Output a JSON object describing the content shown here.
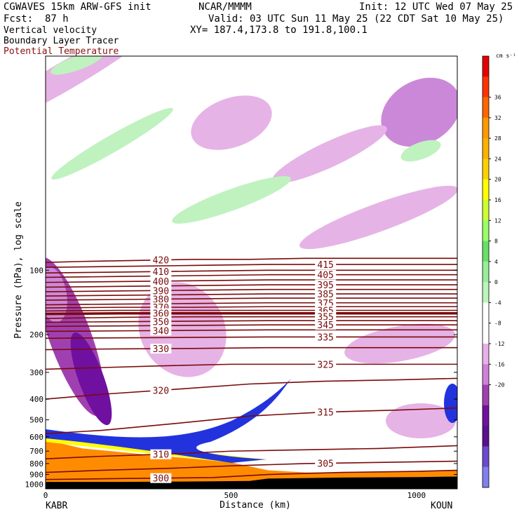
{
  "header": {
    "model": "CGWAVES 15km ARW-GFS init",
    "org": "NCAR/MMMM",
    "init": "Init: 12 UTC Wed 07 May 25",
    "fcst": "Fcst:  87 h",
    "valid": "Valid: 03 UTC Sun 11 May 25 (22 CDT Sat 10 May 25)",
    "xy": "XY= 187.4,173.8 to 191.8,100.1",
    "field1": "Vertical velocity",
    "field2": "Boundary Layer Tracer",
    "field3": "Potential Temperature"
  },
  "colors": {
    "theta": "#7a0a0a",
    "field3": "#8a1010",
    "tracer_fill": "#ff8c00",
    "jet_blue": "#2233dd"
  },
  "chart_data": {
    "type": "heatmap",
    "title": "",
    "xlabel": "Distance (km)",
    "ylabel": "Pressure (hPa), log scale",
    "xlim": [
      0,
      1110
    ],
    "ylim": [
      1050,
      10
    ],
    "x_ticks": [
      "0",
      "500",
      "1000"
    ],
    "y_ticks": [
      "100",
      "200",
      "300",
      "400",
      "500",
      "600",
      "700",
      "800",
      "900",
      "1000"
    ],
    "endpoints": {
      "left": "KABR",
      "right": "KOUN"
    },
    "colorbar": {
      "units": "cm s⁻¹",
      "labels": [
        "36",
        "32",
        "28",
        "24",
        "20",
        "16",
        "12",
        "8",
        "4",
        "0",
        "-4",
        "-8",
        "-12",
        "-16",
        "-20"
      ],
      "colors": [
        "#e60000",
        "#ff3300",
        "#ff6600",
        "#ff9900",
        "#ffb000",
        "#ffd000",
        "#ffff00",
        "#ccff33",
        "#99ff66",
        "#66e066",
        "#99ee99",
        "#bbf5bb",
        "#ffffff",
        "#ffffff",
        "#e8b0e8",
        "#d080d8",
        "#a040b0",
        "#7010a0",
        "#5a1090",
        "#6a4ad0",
        "#8080ee"
      ]
    },
    "theta_contours": [
      {
        "label": "420",
        "x": [
          0,
          100,
          250,
          400,
          550,
          700,
          850,
          1000,
          1110
        ],
        "p": [
          92,
          91,
          90,
          89,
          89,
          88,
          88,
          88,
          88
        ]
      },
      {
        "label": "415",
        "x": [
          0,
          200,
          400,
          600,
          800,
          1000,
          1110
        ],
        "p": [
          97,
          96,
          95,
          94,
          94,
          94,
          94
        ]
      },
      {
        "label": "410",
        "x": [
          0,
          200,
          400,
          600,
          800,
          1000,
          1110
        ],
        "p": [
          103,
          102,
          101,
          100,
          100,
          100,
          100
        ]
      },
      {
        "label": "405",
        "x": [
          0,
          200,
          400,
          600,
          800,
          1000,
          1110
        ],
        "p": [
          108,
          107,
          106,
          105,
          105,
          105,
          105
        ]
      },
      {
        "label": "400",
        "x": [
          0,
          200,
          400,
          600,
          800,
          1000,
          1110
        ],
        "p": [
          114,
          113,
          112,
          111,
          111,
          111,
          111
        ]
      },
      {
        "label": "395",
        "x": [
          0,
          200,
          400,
          600,
          800,
          1000,
          1110
        ],
        "p": [
          120,
          119,
          118,
          117,
          117,
          117,
          117
        ]
      },
      {
        "label": "390",
        "x": [
          0,
          200,
          400,
          600,
          800,
          1000,
          1110
        ],
        "p": [
          126,
          125,
          124,
          123,
          123,
          123,
          123
        ]
      },
      {
        "label": "385",
        "x": [
          0,
          200,
          400,
          600,
          800,
          1000,
          1110
        ],
        "p": [
          132,
          131,
          130,
          129,
          129,
          129,
          129
        ]
      },
      {
        "label": "380",
        "x": [
          0,
          200,
          400,
          600,
          800,
          1000,
          1110
        ],
        "p": [
          138,
          137,
          136,
          135,
          135,
          135,
          135
        ]
      },
      {
        "label": "375",
        "x": [
          0,
          200,
          400,
          600,
          800,
          1000,
          1110
        ],
        "p": [
          145,
          144,
          143,
          142,
          142,
          142,
          142
        ]
      },
      {
        "label": "370",
        "x": [
          0,
          200,
          400,
          600,
          800,
          1000,
          1110
        ],
        "p": [
          150,
          149,
          149,
          148,
          148,
          148,
          148
        ]
      },
      {
        "label": "365",
        "x": [
          0,
          200,
          400,
          600,
          800,
          1000,
          1110
        ],
        "p": [
          155,
          154,
          154,
          154,
          154,
          154,
          154
        ]
      },
      {
        "label": "360",
        "x": [
          0,
          200,
          400,
          600,
          800,
          1000,
          1110
        ],
        "p": [
          160,
          159,
          159,
          159,
          159,
          159,
          159
        ]
      },
      {
        "label": "355",
        "x": [
          0,
          200,
          400,
          600,
          800,
          1000,
          1110
        ],
        "p": [
          168,
          166,
          165,
          165,
          165,
          165,
          165
        ]
      },
      {
        "label": "350",
        "x": [
          0,
          200,
          400,
          600,
          800,
          1000,
          1110
        ],
        "p": [
          175,
          174,
          173,
          172,
          172,
          172,
          172
        ]
      },
      {
        "label": "345",
        "x": [
          0,
          200,
          400,
          600,
          800,
          1000,
          1110
        ],
        "p": [
          183,
          182,
          181,
          180,
          180,
          180,
          180
        ]
      },
      {
        "label": "340",
        "x": [
          0,
          200,
          400,
          600,
          800,
          1000,
          1110
        ],
        "p": [
          193,
          192,
          191,
          190,
          190,
          190,
          190
        ]
      },
      {
        "label": "335",
        "x": [
          0,
          200,
          400,
          600,
          800,
          1000,
          1110
        ],
        "p": [
          208,
          207,
          206,
          205,
          205,
          205,
          205
        ]
      },
      {
        "label": "330",
        "x": [
          0,
          200,
          400,
          600,
          800,
          1000,
          1110
        ],
        "p": [
          235,
          233,
          232,
          230,
          230,
          230,
          230
        ]
      },
      {
        "label": "325",
        "x": [
          0,
          150,
          300,
          500,
          700,
          900,
          1110
        ],
        "p": [
          290,
          285,
          280,
          275,
          275,
          275,
          275
        ]
      },
      {
        "label": "320",
        "x": [
          0,
          150,
          350,
          550,
          750,
          950,
          1110
        ],
        "p": [
          400,
          380,
          360,
          340,
          330,
          325,
          320
        ]
      },
      {
        "label": "315",
        "x": [
          0,
          150,
          350,
          550,
          750,
          950,
          1110
        ],
        "p": [
          580,
          560,
          520,
          480,
          460,
          450,
          440
        ]
      },
      {
        "label": "310",
        "x": [
          0,
          150,
          350,
          500,
          700,
          900,
          1110
        ],
        "p": [
          760,
          740,
          720,
          700,
          690,
          680,
          660
        ]
      },
      {
        "label": "305",
        "x": [
          0,
          150,
          350,
          500,
          700,
          900,
          1110
        ],
        "p": [
          880,
          860,
          840,
          820,
          800,
          790,
          780
        ]
      },
      {
        "label": "300",
        "x": [
          0,
          200,
          450,
          600,
          800,
          1000,
          1110
        ],
        "p": [
          950,
          940,
          930,
          900,
          880,
          870,
          860
        ]
      }
    ],
    "tracer": {
      "x": [
        0,
        100,
        250,
        400,
        500,
        600,
        700,
        800,
        900,
        1000,
        1110
      ],
      "p_top": [
        620,
        680,
        720,
        760,
        790,
        860,
        880,
        880,
        880,
        870,
        860
      ]
    },
    "terrain": {
      "x": [
        0,
        200,
        400,
        550,
        600,
        800,
        1000,
        1110
      ],
      "p": [
        975,
        975,
        970,
        965,
        940,
        930,
        925,
        920
      ]
    }
  }
}
